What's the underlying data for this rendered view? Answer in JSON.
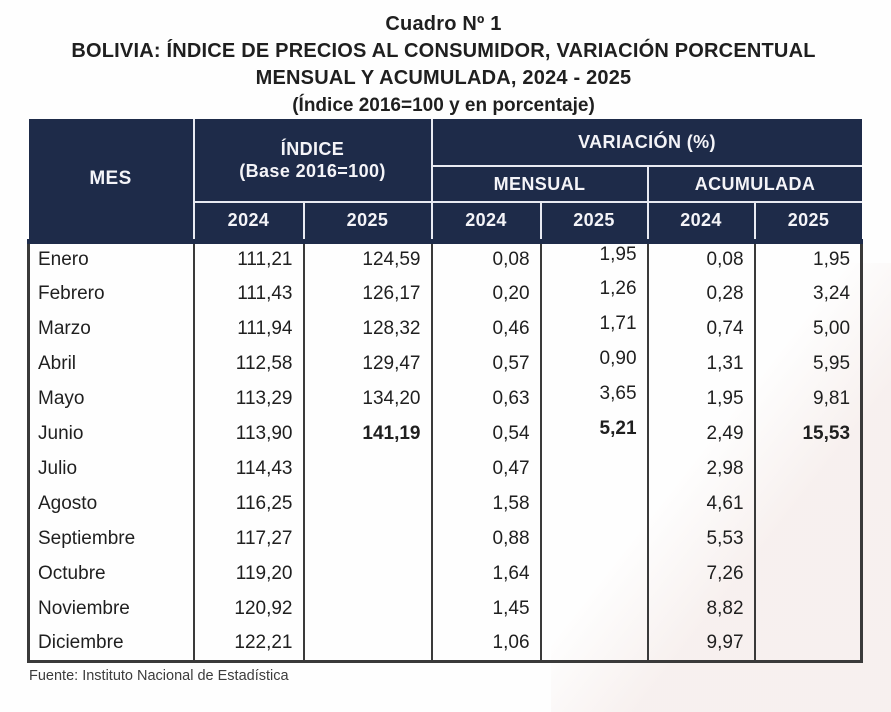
{
  "colors": {
    "header_bg": "#1e2b49",
    "header_divider": "#e8eaf2",
    "grid": "#3a3a3a",
    "ink": "#1f1f1f",
    "source_text": "#3c3c3c",
    "page_bg": "#fefefe",
    "sheen": "#f6eeec"
  },
  "header": {
    "line1": "Cuadro Nº 1",
    "line2": "BOLIVIA: ÍNDICE DE PRECIOS AL CONSUMIDOR, VARIACIÓN PORCENTUAL",
    "line3": "MENSUAL Y ACUMULADA, 2024 - 2025",
    "line4": "(Índice 2016=100 y en porcentaje)"
  },
  "table": {
    "header": {
      "mes": "MES",
      "indice_line1": "ÍNDICE",
      "indice_line2": "(Base 2016=100)",
      "variacion": "VARIACIÓN (%)",
      "mensual": "MENSUAL",
      "acumulada": "ACUMULADA",
      "years": [
        "2024",
        "2025",
        "2024",
        "2025",
        "2024",
        "2025"
      ]
    },
    "rows": [
      {
        "mes": "Enero",
        "indice_2024": "111,21",
        "indice_2025": "124,59",
        "mensual_2024": "0,08",
        "mensual_2025": "1,95",
        "acumulada_2024": "0,08",
        "acumulada_2025": "1,95",
        "bold_cols": []
      },
      {
        "mes": "Febrero",
        "indice_2024": "111,43",
        "indice_2025": "126,17",
        "mensual_2024": "0,20",
        "mensual_2025": "1,26",
        "acumulada_2024": "0,28",
        "acumulada_2025": "3,24",
        "bold_cols": []
      },
      {
        "mes": "Marzo",
        "indice_2024": "111,94",
        "indice_2025": "128,32",
        "mensual_2024": "0,46",
        "mensual_2025": "1,71",
        "acumulada_2024": "0,74",
        "acumulada_2025": "5,00",
        "bold_cols": []
      },
      {
        "mes": "Abril",
        "indice_2024": "112,58",
        "indice_2025": "129,47",
        "mensual_2024": "0,57",
        "mensual_2025": "0,90",
        "acumulada_2024": "1,31",
        "acumulada_2025": "5,95",
        "bold_cols": []
      },
      {
        "mes": "Mayo",
        "indice_2024": "113,29",
        "indice_2025": "134,20",
        "mensual_2024": "0,63",
        "mensual_2025": "3,65",
        "acumulada_2024": "1,95",
        "acumulada_2025": "9,81",
        "bold_cols": []
      },
      {
        "mes": "Junio",
        "indice_2024": "113,90",
        "indice_2025": "141,19",
        "mensual_2024": "0,54",
        "mensual_2025": "5,21",
        "acumulada_2024": "2,49",
        "acumulada_2025": "15,53",
        "bold_cols": [
          "indice_2025",
          "mensual_2025",
          "acumulada_2025"
        ]
      },
      {
        "mes": "Julio",
        "indice_2024": "114,43",
        "indice_2025": "",
        "mensual_2024": "0,47",
        "mensual_2025": "",
        "acumulada_2024": "2,98",
        "acumulada_2025": "",
        "bold_cols": []
      },
      {
        "mes": "Agosto",
        "indice_2024": "116,25",
        "indice_2025": "",
        "mensual_2024": "1,58",
        "mensual_2025": "",
        "acumulada_2024": "4,61",
        "acumulada_2025": "",
        "bold_cols": []
      },
      {
        "mes": "Septiembre",
        "indice_2024": "117,27",
        "indice_2025": "",
        "mensual_2024": "0,88",
        "mensual_2025": "",
        "acumulada_2024": "5,53",
        "acumulada_2025": "",
        "bold_cols": []
      },
      {
        "mes": "Octubre",
        "indice_2024": "119,20",
        "indice_2025": "",
        "mensual_2024": "1,64",
        "mensual_2025": "",
        "acumulada_2024": "7,26",
        "acumulada_2025": "",
        "bold_cols": []
      },
      {
        "mes": "Noviembre",
        "indice_2024": "120,92",
        "indice_2025": "",
        "mensual_2024": "1,45",
        "mensual_2025": "",
        "acumulada_2024": "8,82",
        "acumulada_2025": "",
        "bold_cols": []
      },
      {
        "mes": "Diciembre",
        "indice_2024": "122,21",
        "indice_2025": "",
        "mensual_2024": "1,06",
        "mensual_2025": "",
        "acumulada_2024": "9,97",
        "acumulada_2025": "",
        "bold_cols": []
      }
    ]
  },
  "footer": {
    "source": "Fuente: Instituto Nacional de Estadística"
  }
}
